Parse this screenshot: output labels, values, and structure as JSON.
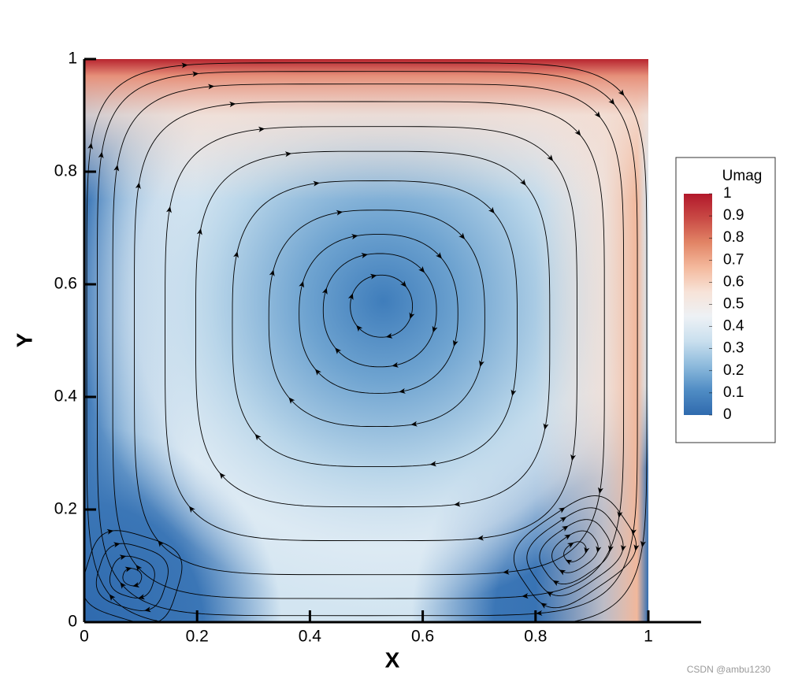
{
  "chart_data": {
    "type": "contour",
    "xlabel": "X",
    "ylabel": "Y",
    "xlim": [
      0,
      1
    ],
    "ylim": [
      0,
      1
    ],
    "xticks": [
      0,
      0.2,
      0.4,
      0.6,
      0.8,
      1
    ],
    "yticks": [
      0,
      0.2,
      0.4,
      0.6,
      0.8,
      1
    ],
    "colorbar": {
      "title": "Umag",
      "lim": [
        0,
        1
      ],
      "ticks": [
        0,
        0.1,
        0.2,
        0.3,
        0.4,
        0.5,
        0.6,
        0.7,
        0.8,
        0.9,
        1
      ],
      "colormap": [
        "#2f6aae",
        "#4f8cc4",
        "#8dbadc",
        "#c9dfee",
        "#edf1f5",
        "#f7e3d8",
        "#f4b99d",
        "#e28566",
        "#c94a45",
        "#b2182b"
      ]
    }
  },
  "watermark": "CSDN @ambu1230"
}
